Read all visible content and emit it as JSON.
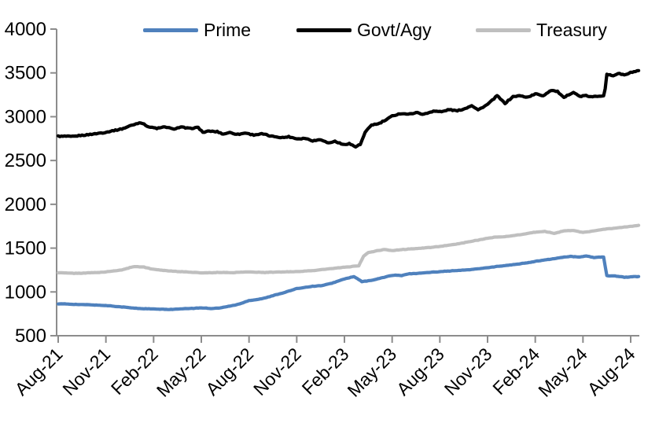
{
  "chart_data": {
    "type": "line",
    "title": "",
    "xlabel": "",
    "ylabel": "",
    "grid": false,
    "legend_position": "top-center",
    "ylim": [
      500,
      4000
    ],
    "y_ticks": [
      500,
      1000,
      1500,
      2000,
      2500,
      3000,
      3500,
      4000
    ],
    "x_tick_labels": [
      "Aug-21",
      "Nov-21",
      "Feb-22",
      "May-22",
      "Aug-22",
      "Nov-22",
      "Feb-23",
      "May-23",
      "Aug-23",
      "Nov-23",
      "Feb-24",
      "May-24",
      "Aug-24"
    ],
    "x_tick_positions_months": [
      0,
      3,
      6,
      9,
      12,
      15,
      18,
      21,
      24,
      27,
      30,
      33,
      36
    ],
    "xlim_months": [
      0,
      36.5
    ],
    "x_origin_label": "Aug-21",
    "axis_color": "#8C8C8C",
    "series": [
      {
        "name": "Prime",
        "color": "#4F81BD",
        "jitter": 3,
        "points": [
          [
            0,
            865
          ],
          [
            1,
            858
          ],
          [
            2,
            852
          ],
          [
            3,
            845
          ],
          [
            4,
            828
          ],
          [
            5,
            812
          ],
          [
            6,
            805
          ],
          [
            7,
            800
          ],
          [
            8,
            808
          ],
          [
            9,
            818
          ],
          [
            9.6,
            810
          ],
          [
            10.2,
            818
          ],
          [
            10.8,
            838
          ],
          [
            11.4,
            862
          ],
          [
            12,
            903
          ],
          [
            12.5,
            912
          ],
          [
            13,
            932
          ],
          [
            14,
            982
          ],
          [
            15,
            1038
          ],
          [
            16,
            1065
          ],
          [
            16.6,
            1072
          ],
          [
            17.2,
            1098
          ],
          [
            18,
            1148
          ],
          [
            18.6,
            1175
          ],
          [
            19.1,
            1118
          ],
          [
            19.6,
            1128
          ],
          [
            20,
            1145
          ],
          [
            20.7,
            1178
          ],
          [
            21.2,
            1192
          ],
          [
            21.6,
            1185
          ],
          [
            22,
            1205
          ],
          [
            23,
            1218
          ],
          [
            24,
            1232
          ],
          [
            25,
            1243
          ],
          [
            26,
            1255
          ],
          [
            27,
            1278
          ],
          [
            28,
            1298
          ],
          [
            29,
            1320
          ],
          [
            30,
            1348
          ],
          [
            31,
            1375
          ],
          [
            31.6,
            1392
          ],
          [
            32.2,
            1405
          ],
          [
            32.8,
            1398
          ],
          [
            33.2,
            1412
          ],
          [
            33.7,
            1392
          ],
          [
            34.1,
            1398
          ],
          [
            34.35,
            1398
          ],
          [
            34.45,
            1185
          ],
          [
            35,
            1182
          ],
          [
            35.6,
            1168
          ],
          [
            36,
            1172
          ],
          [
            36.5,
            1175
          ]
        ]
      },
      {
        "name": "Govt/Agy",
        "color": "#000000",
        "jitter": 8,
        "points": [
          [
            0,
            2780
          ],
          [
            0.8,
            2772
          ],
          [
            1.6,
            2788
          ],
          [
            2.4,
            2805
          ],
          [
            3.2,
            2830
          ],
          [
            4,
            2862
          ],
          [
            4.6,
            2900
          ],
          [
            5.2,
            2935
          ],
          [
            5.7,
            2885
          ],
          [
            6.2,
            2865
          ],
          [
            6.7,
            2885
          ],
          [
            7.2,
            2858
          ],
          [
            7.7,
            2880
          ],
          [
            8.3,
            2868
          ],
          [
            8.8,
            2878
          ],
          [
            9.1,
            2822
          ],
          [
            9.5,
            2838
          ],
          [
            10,
            2828
          ],
          [
            10.4,
            2798
          ],
          [
            10.8,
            2822
          ],
          [
            11.3,
            2798
          ],
          [
            11.8,
            2812
          ],
          [
            12.3,
            2795
          ],
          [
            12.8,
            2802
          ],
          [
            13.4,
            2778
          ],
          [
            14,
            2762
          ],
          [
            14.5,
            2772
          ],
          [
            15,
            2748
          ],
          [
            15.5,
            2756
          ],
          [
            16,
            2726
          ],
          [
            16.5,
            2738
          ],
          [
            17,
            2702
          ],
          [
            17.4,
            2722
          ],
          [
            17.9,
            2682
          ],
          [
            18.3,
            2695
          ],
          [
            18.7,
            2658
          ],
          [
            19,
            2680
          ],
          [
            19.3,
            2818
          ],
          [
            19.7,
            2905
          ],
          [
            20.1,
            2918
          ],
          [
            20.6,
            2958
          ],
          [
            21,
            3008
          ],
          [
            21.5,
            3035
          ],
          [
            22,
            3028
          ],
          [
            22.5,
            3048
          ],
          [
            23,
            3030
          ],
          [
            23.6,
            3068
          ],
          [
            24.1,
            3058
          ],
          [
            24.6,
            3082
          ],
          [
            25.1,
            3068
          ],
          [
            25.6,
            3092
          ],
          [
            26,
            3128
          ],
          [
            26.4,
            3078
          ],
          [
            27,
            3140
          ],
          [
            27.6,
            3242
          ],
          [
            28.1,
            3150
          ],
          [
            28.6,
            3228
          ],
          [
            29,
            3238
          ],
          [
            29.5,
            3222
          ],
          [
            30,
            3258
          ],
          [
            30.5,
            3242
          ],
          [
            31,
            3302
          ],
          [
            31.4,
            3288
          ],
          [
            31.8,
            3218
          ],
          [
            32.1,
            3252
          ],
          [
            32.4,
            3282
          ],
          [
            32.8,
            3232
          ],
          [
            33.2,
            3242
          ],
          [
            33.6,
            3225
          ],
          [
            34,
            3235
          ],
          [
            34.35,
            3240
          ],
          [
            34.5,
            3478
          ],
          [
            34.9,
            3468
          ],
          [
            35.2,
            3492
          ],
          [
            35.6,
            3478
          ],
          [
            36,
            3502
          ],
          [
            36.5,
            3522
          ]
        ]
      },
      {
        "name": "Treasury",
        "color": "#BFBFBF",
        "jitter": 3,
        "points": [
          [
            0,
            1220
          ],
          [
            1,
            1212
          ],
          [
            2,
            1218
          ],
          [
            3,
            1228
          ],
          [
            4,
            1252
          ],
          [
            4.8,
            1292
          ],
          [
            5.4,
            1282
          ],
          [
            6,
            1258
          ],
          [
            7,
            1240
          ],
          [
            8,
            1228
          ],
          [
            9,
            1218
          ],
          [
            10,
            1222
          ],
          [
            11,
            1222
          ],
          [
            12,
            1228
          ],
          [
            13,
            1222
          ],
          [
            14,
            1228
          ],
          [
            15,
            1232
          ],
          [
            16,
            1242
          ],
          [
            17,
            1262
          ],
          [
            18,
            1282
          ],
          [
            18.9,
            1298
          ],
          [
            19.2,
            1408
          ],
          [
            19.5,
            1448
          ],
          [
            20,
            1468
          ],
          [
            20.5,
            1482
          ],
          [
            21,
            1472
          ],
          [
            21.5,
            1482
          ],
          [
            22,
            1488
          ],
          [
            23,
            1502
          ],
          [
            24,
            1518
          ],
          [
            25,
            1545
          ],
          [
            26,
            1578
          ],
          [
            27,
            1612
          ],
          [
            27.5,
            1625
          ],
          [
            28,
            1628
          ],
          [
            29,
            1652
          ],
          [
            30,
            1682
          ],
          [
            30.6,
            1690
          ],
          [
            31.2,
            1668
          ],
          [
            31.8,
            1698
          ],
          [
            32.4,
            1702
          ],
          [
            33,
            1678
          ],
          [
            33.5,
            1692
          ],
          [
            34,
            1708
          ],
          [
            35,
            1728
          ],
          [
            36,
            1748
          ],
          [
            36.5,
            1758
          ]
        ]
      }
    ]
  }
}
